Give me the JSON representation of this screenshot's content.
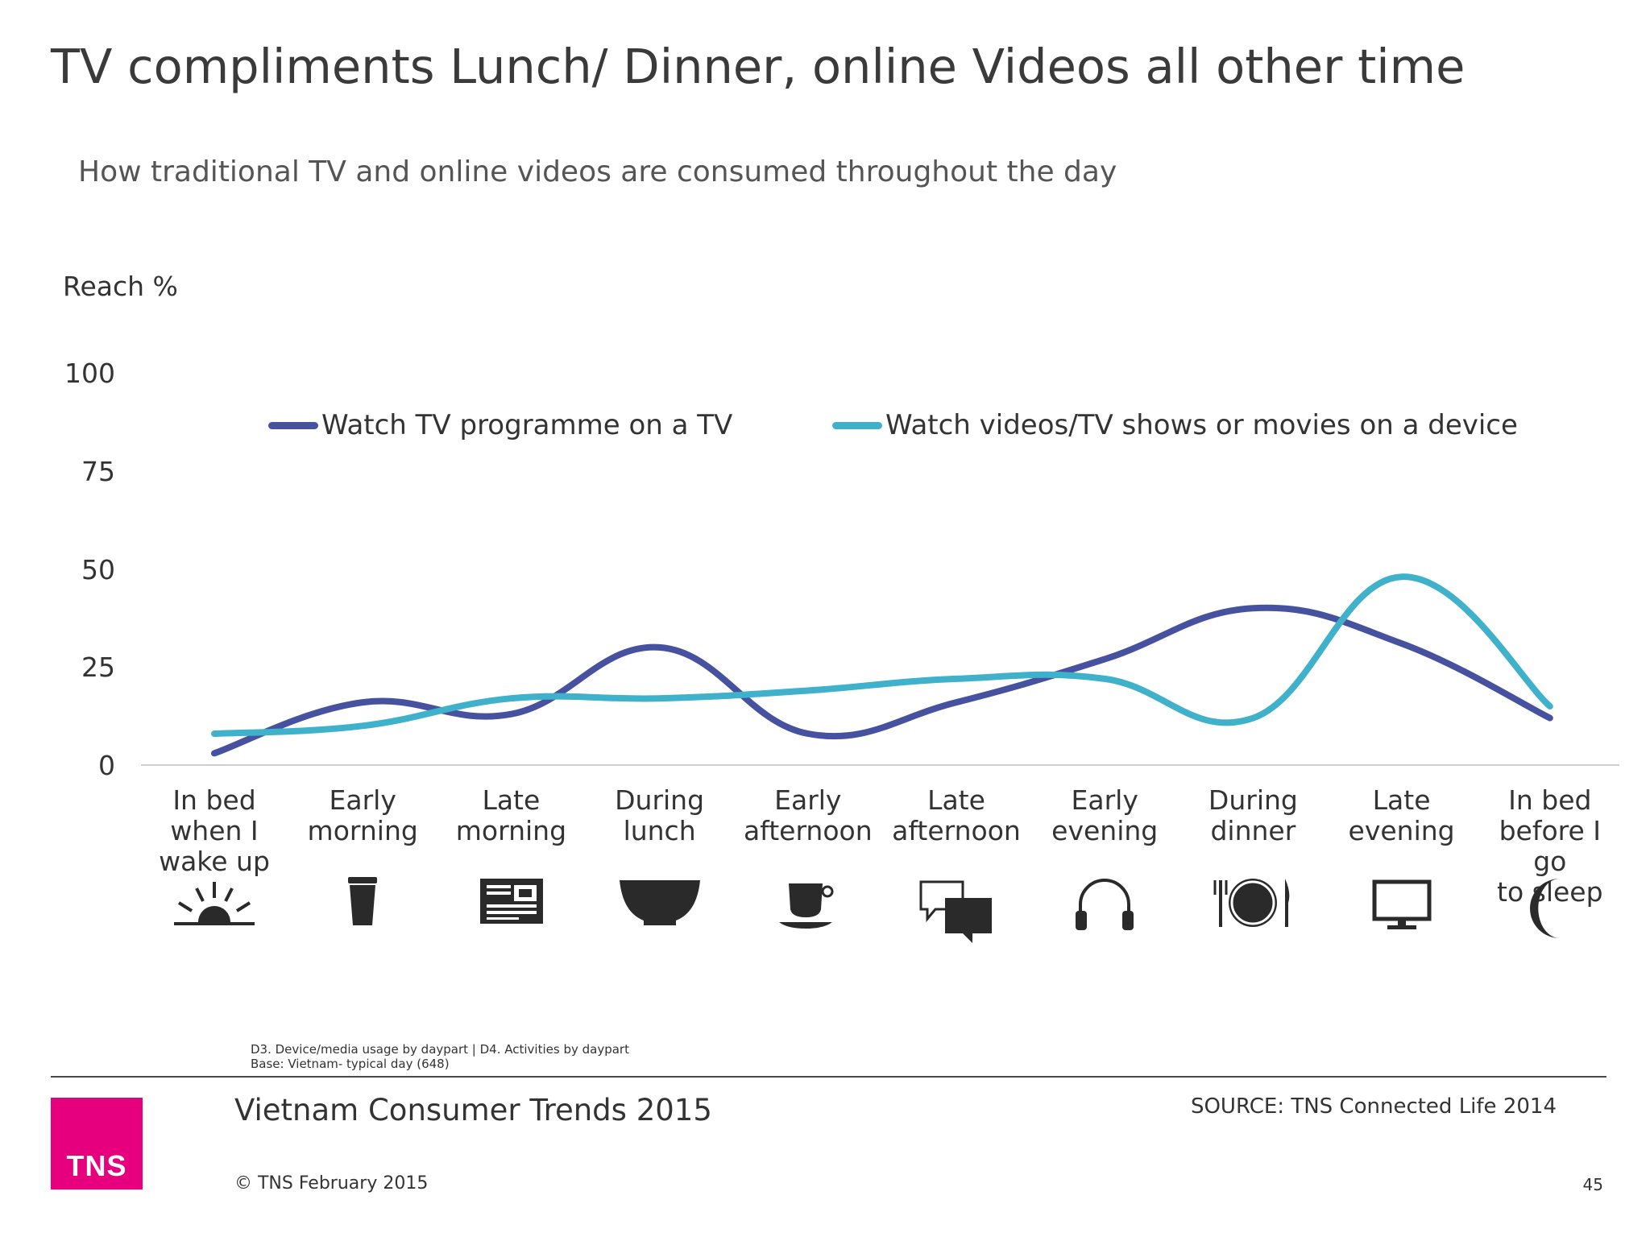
{
  "title": "TV compliments Lunch/ Dinner, online Videos all other time",
  "subtitle": "How traditional TV and online videos are consumed throughout the day",
  "chart_data": {
    "type": "line",
    "ylabel": "Reach %",
    "ylim": [
      0,
      100
    ],
    "yticks": [
      "0",
      "25",
      "50",
      "75",
      "100"
    ],
    "categories": [
      [
        "In bed",
        "when I",
        "wake up"
      ],
      [
        "Early",
        "morning"
      ],
      [
        "Late",
        "morning"
      ],
      [
        "During",
        "lunch"
      ],
      [
        "Early",
        "afternoon"
      ],
      [
        "Late",
        "afternoon"
      ],
      [
        "Early",
        "evening"
      ],
      [
        "During",
        "dinner"
      ],
      [
        "Late",
        "evening"
      ],
      [
        "In bed",
        "before I go",
        "to sleep"
      ]
    ],
    "category_icons": [
      "sunrise-icon",
      "coffee-cup-icon",
      "newspaper-icon",
      "bowl-icon",
      "teacup-icon",
      "chat-bubbles-icon",
      "headphones-icon",
      "plate-cutlery-icon",
      "monitor-icon",
      "moon-icon"
    ],
    "series": [
      {
        "name": "Watch TV programme on a TV",
        "color": "#46529f",
        "values": [
          3,
          16,
          13,
          30,
          8,
          16,
          27,
          40,
          31,
          12
        ]
      },
      {
        "name": "Watch videos/TV shows or movies on a device",
        "color": "#3fb1ca",
        "values": [
          8,
          10,
          17,
          17,
          19,
          22,
          22,
          12,
          48,
          15
        ]
      }
    ],
    "grid": false,
    "legend_position": "top"
  },
  "footnote": {
    "line1": "D3. Device/media usage by daypart | D4. Activities by daypart",
    "line2": "Base: Vietnam- typical day (648)"
  },
  "footer": {
    "report_title": "Vietnam Consumer Trends 2015",
    "source": "SOURCE: TNS Connected Life 2014",
    "copyright": "© TNS February 2015",
    "page_number": "45",
    "logo_text": "TNS",
    "brand_color": "#e6007e"
  }
}
